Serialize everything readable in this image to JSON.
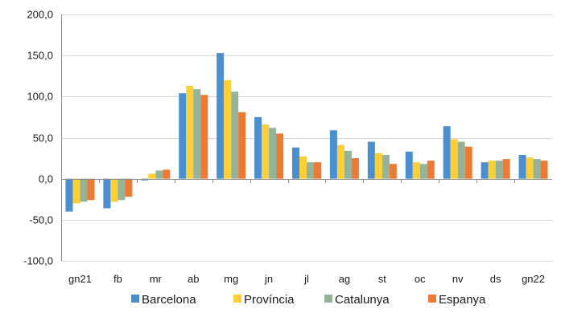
{
  "chart_data": {
    "type": "bar",
    "title": "",
    "xlabel": "",
    "ylabel": "",
    "categories": [
      "gn21",
      "fb",
      "mr",
      "ab",
      "mg",
      "jn",
      "jl",
      "ag",
      "st",
      "oc",
      "nv",
      "ds",
      "gn22"
    ],
    "ylim": [
      -100,
      200
    ],
    "yticks": [
      -100,
      -50,
      0,
      50,
      100,
      150,
      200
    ],
    "ytick_labels": [
      "-100,0",
      "-50,0",
      "0,0",
      "50,0",
      "100,0",
      "150,0",
      "200,0"
    ],
    "grid": true,
    "legend_position": "bottom",
    "series": [
      {
        "name": "Barcelona",
        "color": "#4a8fd1",
        "values": [
          -40,
          -36,
          -2,
          104,
          153,
          75,
          38,
          59,
          45,
          33,
          64,
          20,
          29
        ]
      },
      {
        "name": "Província",
        "color": "#ffd035",
        "values": [
          -30,
          -28,
          6,
          113,
          120,
          66,
          27,
          41,
          31,
          20,
          48,
          22,
          26
        ]
      },
      {
        "name": "Catalunya",
        "color": "#94b49a",
        "values": [
          -28,
          -26,
          10,
          109,
          106,
          62,
          20,
          34,
          29,
          18,
          45,
          22,
          24
        ]
      },
      {
        "name": "Espanya",
        "color": "#ec7a35",
        "values": [
          -26,
          -22,
          11,
          102,
          81,
          55,
          20,
          25,
          18,
          22,
          39,
          24,
          22
        ]
      }
    ]
  }
}
